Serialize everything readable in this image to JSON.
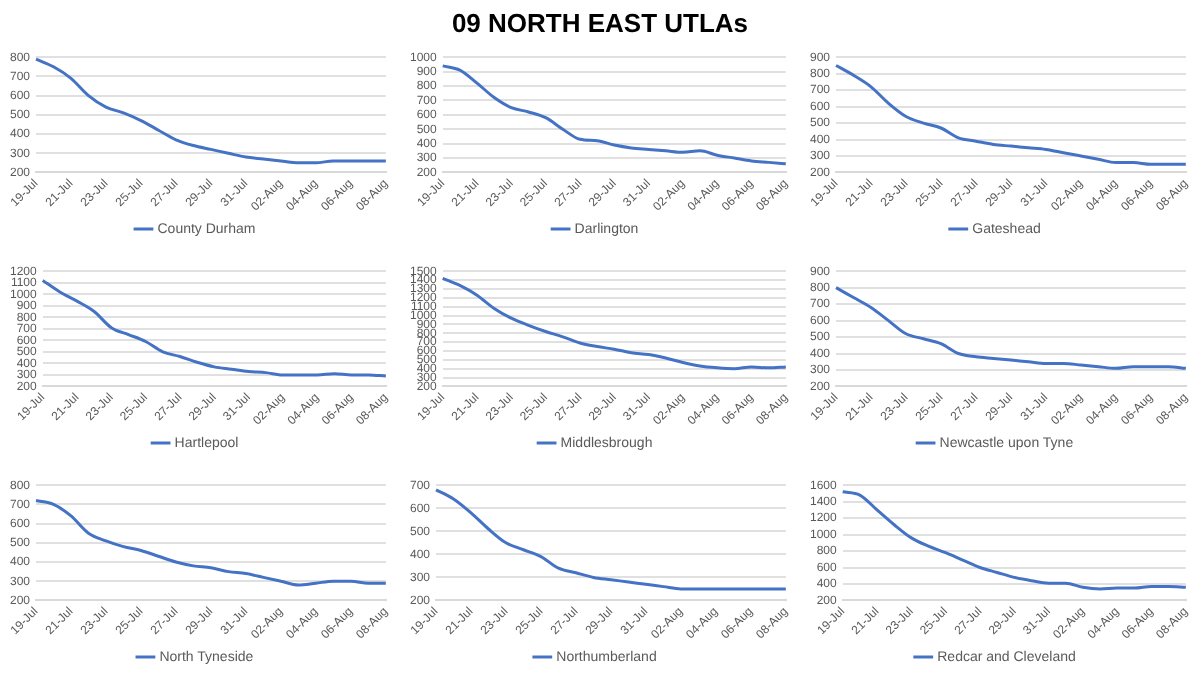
{
  "chart_data": [
    {
      "type": "line",
      "categories": [
        "19-Jul",
        null,
        "21-Jul",
        null,
        "23-Jul",
        null,
        "25-Jul",
        null,
        "27-Jul",
        null,
        "29-Jul",
        null,
        "31-Jul",
        null,
        "02-Aug",
        null,
        "04-Aug",
        null,
        "06-Aug",
        null,
        "08-Aug"
      ],
      "series": [
        {
          "name": "County Durham",
          "color": "#4472c4",
          "values": [
            790,
            750,
            690,
            600,
            540,
            510,
            470,
            420,
            370,
            340,
            320,
            300,
            280,
            270,
            260,
            250,
            250,
            260,
            260,
            260,
            260
          ]
        }
      ],
      "ylim": [
        200,
        800
      ],
      "yticks": [
        200,
        300,
        400,
        500,
        600,
        700,
        800
      ],
      "grid": "y",
      "legend": "bottom",
      "marker": "none"
    },
    {
      "type": "line",
      "title": "09 NORTH EAST UTLAs",
      "categories": [
        "19-Jul",
        null,
        "21-Jul",
        null,
        "23-Jul",
        null,
        "25-Jul",
        null,
        "27-Jul",
        null,
        "29-Jul",
        null,
        "31-Jul",
        null,
        "02-Aug",
        null,
        "04-Aug",
        null,
        "06-Aug",
        null,
        "08-Aug"
      ],
      "series": [
        {
          "name": "Darlington",
          "color": "#4472c4",
          "values": [
            940,
            910,
            820,
            720,
            650,
            620,
            580,
            500,
            430,
            420,
            390,
            370,
            360,
            350,
            340,
            350,
            320,
            300,
            280,
            270,
            260
          ]
        }
      ],
      "ylim": [
        200,
        1000
      ],
      "yticks": [
        200,
        300,
        400,
        500,
        600,
        700,
        800,
        900,
        1000
      ],
      "grid": "y",
      "legend": "bottom",
      "marker": "none"
    },
    {
      "type": "line",
      "categories": [
        "19-Jul",
        null,
        "21-Jul",
        null,
        "23-Jul",
        null,
        "25-Jul",
        null,
        "27-Jul",
        null,
        "29-Jul",
        null,
        "31-Jul",
        null,
        "02-Aug",
        null,
        "04-Aug",
        null,
        "06-Aug",
        null,
        "08-Aug"
      ],
      "series": [
        {
          "name": "Gateshead",
          "color": "#4472c4",
          "values": [
            850,
            790,
            720,
            620,
            540,
            500,
            470,
            410,
            390,
            370,
            360,
            350,
            340,
            320,
            300,
            280,
            260,
            260,
            250,
            250,
            250
          ]
        }
      ],
      "ylim": [
        200,
        900
      ],
      "yticks": [
        200,
        300,
        400,
        500,
        600,
        700,
        800,
        900
      ],
      "grid": "y",
      "legend": "bottom",
      "marker": "none"
    },
    {
      "type": "line",
      "categories": [
        "19-Jul",
        null,
        "21-Jul",
        null,
        "23-Jul",
        null,
        "25-Jul",
        null,
        "27-Jul",
        null,
        "29-Jul",
        null,
        "31-Jul",
        null,
        "02-Aug",
        null,
        "04-Aug",
        null,
        "06-Aug",
        null,
        "08-Aug"
      ],
      "series": [
        {
          "name": "Hartlepool",
          "color": "#4472c4",
          "values": [
            1120,
            1020,
            940,
            850,
            710,
            650,
            590,
            500,
            460,
            410,
            370,
            350,
            330,
            320,
            300,
            300,
            300,
            310,
            300,
            300,
            290
          ]
        }
      ],
      "ylim": [
        200,
        1200
      ],
      "yticks": [
        200,
        300,
        400,
        500,
        600,
        700,
        800,
        900,
        1000,
        1100,
        1200
      ],
      "grid": "y",
      "legend": "bottom",
      "marker": "none"
    },
    {
      "type": "line",
      "categories": [
        "19-Jul",
        null,
        "21-Jul",
        null,
        "23-Jul",
        null,
        "25-Jul",
        null,
        "27-Jul",
        null,
        "29-Jul",
        null,
        "31-Jul",
        null,
        "02-Aug",
        null,
        "04-Aug",
        null,
        "06-Aug",
        null,
        "08-Aug"
      ],
      "series": [
        {
          "name": "Middlesbrough",
          "color": "#4472c4",
          "values": [
            1420,
            1340,
            1230,
            1080,
            970,
            890,
            820,
            760,
            690,
            650,
            620,
            580,
            560,
            520,
            470,
            430,
            410,
            400,
            420,
            410,
            420
          ]
        }
      ],
      "ylim": [
        200,
        1500
      ],
      "yticks": [
        200,
        300,
        400,
        500,
        600,
        700,
        800,
        900,
        1000,
        1100,
        1200,
        1300,
        1400,
        1500
      ],
      "grid": "y",
      "legend": "bottom",
      "marker": "none"
    },
    {
      "type": "line",
      "categories": [
        "19-Jul",
        null,
        "21-Jul",
        null,
        "23-Jul",
        null,
        "25-Jul",
        null,
        "27-Jul",
        null,
        "29-Jul",
        null,
        "31-Jul",
        null,
        "02-Aug",
        null,
        "04-Aug",
        null,
        "06-Aug",
        null,
        "08-Aug"
      ],
      "series": [
        {
          "name": "Newcastle upon Tyne",
          "color": "#4472c4",
          "values": [
            800,
            740,
            680,
            600,
            520,
            490,
            460,
            400,
            380,
            370,
            360,
            350,
            340,
            340,
            330,
            320,
            310,
            320,
            320,
            320,
            310
          ]
        }
      ],
      "ylim": [
        200,
        900
      ],
      "yticks": [
        200,
        300,
        400,
        500,
        600,
        700,
        800,
        900
      ],
      "grid": "y",
      "legend": "bottom",
      "marker": "none"
    },
    {
      "type": "line",
      "categories": [
        "19-Jul",
        null,
        "21-Jul",
        null,
        "23-Jul",
        null,
        "25-Jul",
        null,
        "27-Jul",
        null,
        "29-Jul",
        null,
        "31-Jul",
        null,
        "02-Aug",
        null,
        "04-Aug",
        null,
        "06-Aug",
        null,
        "08-Aug"
      ],
      "series": [
        {
          "name": "North Tyneside",
          "color": "#4472c4",
          "values": [
            720,
            700,
            640,
            550,
            510,
            480,
            460,
            430,
            400,
            380,
            370,
            350,
            340,
            320,
            300,
            280,
            290,
            300,
            300,
            290,
            290
          ]
        }
      ],
      "ylim": [
        200,
        800
      ],
      "yticks": [
        200,
        300,
        400,
        500,
        600,
        700,
        800
      ],
      "grid": "y",
      "legend": "bottom",
      "marker": "none"
    },
    {
      "type": "line",
      "categories": [
        "19-Jul",
        null,
        "21-Jul",
        null,
        "23-Jul",
        null,
        "25-Jul",
        null,
        "27-Jul",
        null,
        "29-Jul",
        null,
        "31-Jul",
        null,
        "02-Aug",
        null,
        "04-Aug",
        null,
        "06-Aug",
        null,
        "08-Aug"
      ],
      "series": [
        {
          "name": "Northumberland",
          "color": "#4472c4",
          "values": [
            680,
            640,
            580,
            510,
            450,
            420,
            390,
            340,
            320,
            300,
            290,
            280,
            270,
            260,
            250,
            250,
            250,
            250,
            250,
            250,
            250
          ]
        }
      ],
      "ylim": [
        200,
        700
      ],
      "yticks": [
        200,
        300,
        400,
        500,
        600,
        700
      ],
      "grid": "y",
      "legend": "bottom",
      "marker": "none"
    },
    {
      "type": "line",
      "categories": [
        "19-Jul",
        null,
        "21-Jul",
        null,
        "23-Jul",
        null,
        "25-Jul",
        null,
        "27-Jul",
        null,
        "29-Jul",
        null,
        "31-Jul",
        null,
        "02-Aug",
        null,
        "04-Aug",
        null,
        "06-Aug",
        null,
        "08-Aug"
      ],
      "series": [
        {
          "name": "Redcar and Cleveland",
          "color": "#4472c4",
          "values": [
            1520,
            1480,
            1300,
            1120,
            960,
            860,
            780,
            690,
            600,
            540,
            480,
            440,
            410,
            410,
            360,
            340,
            350,
            350,
            370,
            370,
            360
          ]
        }
      ],
      "ylim": [
        200,
        1600
      ],
      "yticks": [
        200,
        400,
        600,
        800,
        1000,
        1200,
        1400,
        1600
      ],
      "grid": "y",
      "legend": "bottom",
      "marker": "none"
    }
  ]
}
